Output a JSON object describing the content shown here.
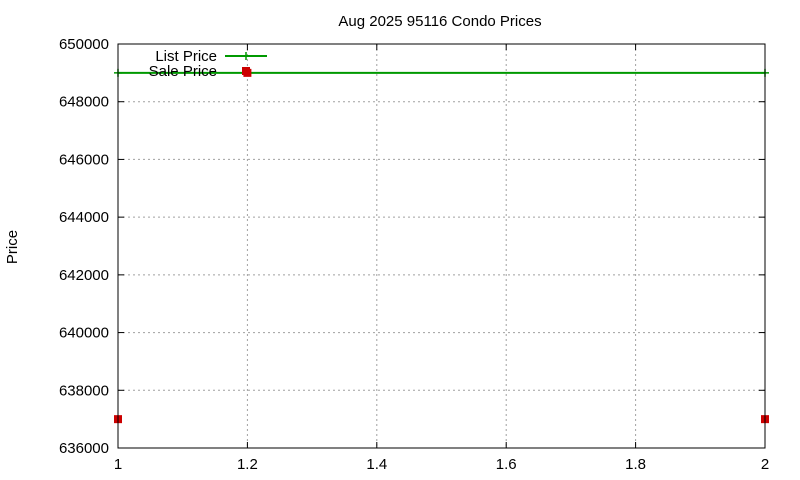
{
  "chart_data": {
    "type": "line",
    "title": "Aug 2025 95116 Condo Prices",
    "xlabel": "",
    "ylabel": "Price",
    "xlim": [
      1,
      2
    ],
    "ylim": [
      636000,
      650000
    ],
    "xticks": [
      "1",
      "1.2",
      "1.4",
      "1.6",
      "1.8",
      "2"
    ],
    "yticks": [
      "636000",
      "638000",
      "640000",
      "642000",
      "644000",
      "646000",
      "648000",
      "650000"
    ],
    "grid": true,
    "legend_position": "top-left",
    "series": [
      {
        "name": "List Price",
        "style": "line",
        "color": "#009900",
        "x": [
          1,
          2
        ],
        "y": [
          649000,
          649000
        ]
      },
      {
        "name": "Sale Price",
        "style": "points",
        "color": "#cc0000",
        "x": [
          1,
          1.2,
          2
        ],
        "y": [
          637000,
          649000,
          637000
        ]
      }
    ]
  }
}
